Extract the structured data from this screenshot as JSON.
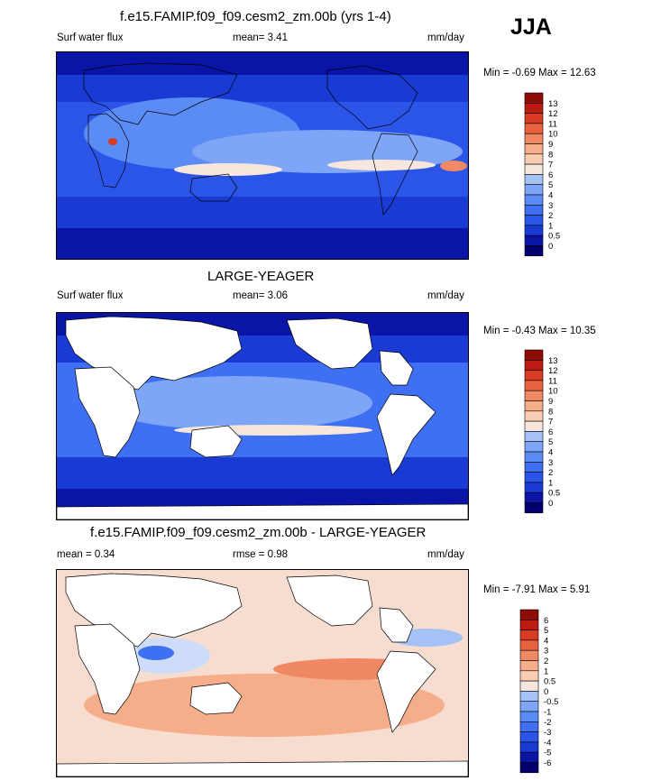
{
  "season": "JJA",
  "palettes": {
    "full": [
      "#03006e",
      "#0a15a8",
      "#1a3ad4",
      "#2a55e8",
      "#3f6ff2",
      "#5b8bf5",
      "#7ea5f6",
      "#a5c2f7",
      "#cddcf8",
      "#f6e6dc",
      "#f8cdb4",
      "#f6ad8a",
      "#f08863",
      "#e9623f",
      "#d93a22",
      "#bb1b10",
      "#8f0b05"
    ],
    "water": "#2650e0",
    "land": "#ffffff",
    "diff_ocean": "#f7ddd0"
  },
  "panels": [
    {
      "title": "f.e15.FAMIP.f09_f09.cesm2_zm.00b (yrs 1-4)",
      "left_label": "Surf water flux",
      "center_label": "mean=  3.41",
      "units": "mm/day",
      "minmax": "Min =  -0.69 Max =  12.63",
      "levels": [
        "0",
        "0.5",
        "1",
        "2",
        "3",
        "4",
        "5",
        "6",
        "7",
        "8",
        "9",
        "10",
        "11",
        "12",
        "13"
      ]
    },
    {
      "title": "LARGE-YEAGER",
      "left_label": "Surf water flux",
      "center_label": "mean=  3.06",
      "units": "mm/day",
      "minmax": "Min =  -0.43 Max =  10.35",
      "levels": [
        "0",
        "0.5",
        "1",
        "2",
        "3",
        "4",
        "5",
        "6",
        "7",
        "8",
        "9",
        "10",
        "11",
        "12",
        "13"
      ]
    },
    {
      "title": "f.e15.FAMIP.f09_f09.cesm2_zm.00b - LARGE-YEAGER",
      "left_label": "mean =   0.34",
      "center_label": "rmse =   0.98",
      "units": "mm/day",
      "minmax": "Min =  -7.91 Max =   5.91",
      "levels": [
        "-6",
        "-5",
        "-4",
        "-3",
        "-2",
        "-1",
        "-0.5",
        "0",
        "0.5",
        "1",
        "2",
        "3",
        "4",
        "5",
        "6"
      ]
    }
  ],
  "chart_data": [
    {
      "type": "heatmap",
      "title": "f.e15.FAMIP.f09_f09.cesm2_zm.00b (yrs 1-4)",
      "variable": "Surf water flux",
      "units": "mm/day",
      "season": "JJA",
      "mean": 3.41,
      "min": -0.69,
      "max": 12.63,
      "colorbar_levels": [
        0,
        0.5,
        1,
        2,
        3,
        4,
        5,
        6,
        7,
        8,
        9,
        10,
        11,
        12,
        13
      ],
      "land_masked": false
    },
    {
      "type": "heatmap",
      "title": "LARGE-YEAGER",
      "variable": "Surf water flux",
      "units": "mm/day",
      "season": "JJA",
      "mean": 3.06,
      "min": -0.43,
      "max": 10.35,
      "colorbar_levels": [
        0,
        0.5,
        1,
        2,
        3,
        4,
        5,
        6,
        7,
        8,
        9,
        10,
        11,
        12,
        13
      ],
      "land_masked": true
    },
    {
      "type": "heatmap",
      "title": "f.e15.FAMIP.f09_f09.cesm2_zm.00b - LARGE-YEAGER",
      "units": "mm/day",
      "season": "JJA",
      "mean": 0.34,
      "rmse": 0.98,
      "min": -7.91,
      "max": 5.91,
      "colorbar_levels": [
        -6,
        -5,
        -4,
        -3,
        -2,
        -1,
        -0.5,
        0,
        0.5,
        1,
        2,
        3,
        4,
        5,
        6
      ],
      "land_masked": true
    }
  ]
}
